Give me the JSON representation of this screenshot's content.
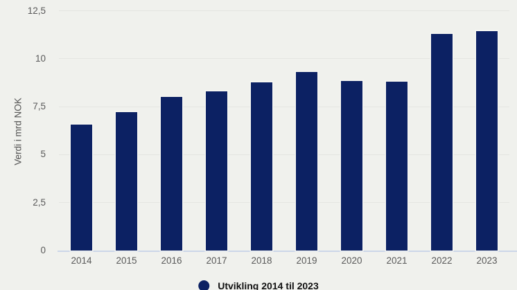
{
  "page": {
    "background_color": "#f0f1ed"
  },
  "chart_data": {
    "type": "bar",
    "title": "",
    "categories": [
      "2014",
      "2015",
      "2016",
      "2017",
      "2018",
      "2019",
      "2020",
      "2021",
      "2022",
      "2023"
    ],
    "series": [
      {
        "name": "Utvikling 2014 til 2023",
        "values": [
          6.55,
          7.2,
          8.0,
          8.3,
          8.75,
          9.3,
          8.85,
          8.8,
          11.3,
          11.45
        ]
      }
    ],
    "xlabel": "",
    "ylabel": "Verdi i mrd NOK",
    "ylim": [
      0,
      12.5
    ],
    "yticks": [
      {
        "value": 0,
        "label": "0"
      },
      {
        "value": 2.5,
        "label": "2,5"
      },
      {
        "value": 5,
        "label": "5"
      },
      {
        "value": 7.5,
        "label": "7,5"
      },
      {
        "value": 10,
        "label": "10"
      },
      {
        "value": 12.5,
        "label": "12,5"
      }
    ],
    "grid": true,
    "legend_position": "bottom-center",
    "colors": {
      "bar": "#0c2163",
      "bar_stroke": "#f7f8f4",
      "gridline": "#e4e5e1",
      "axis_line": "#ccd6e8",
      "tick_label": "#595959",
      "axis_title": "#555555",
      "legend_text": "#111111"
    }
  },
  "legend": {
    "label": "Utvikling 2014 til 2023",
    "marker_color": "#0c2163"
  }
}
